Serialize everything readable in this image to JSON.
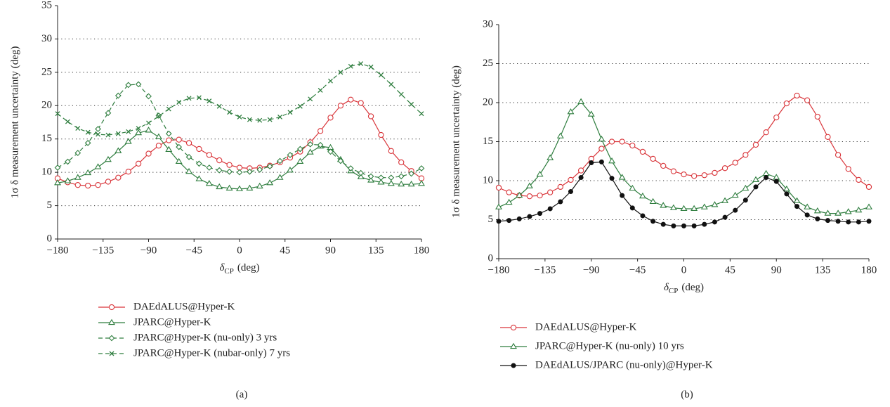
{
  "chart_data": [
    {
      "type": "line",
      "panel": "(a)",
      "ylabel": "1σ δ measurement uncertainty (deg)",
      "xlabel": {
        "symbol": "δ",
        "subscript": "CP",
        "unit": "(deg)"
      },
      "xlim": [
        -180,
        180
      ],
      "ylim": [
        0,
        35
      ],
      "xticks": [
        {
          "value": -180,
          "label": "−180"
        },
        {
          "value": -135,
          "label": "−135"
        },
        {
          "value": -90,
          "label": "−90"
        },
        {
          "value": -45,
          "label": "−45"
        },
        0,
        45,
        90,
        135,
        180
      ],
      "yticks": [
        0,
        5,
        10,
        15,
        20,
        25,
        30,
        35
      ],
      "grid": true,
      "x": [
        -180,
        -170,
        -160,
        -150,
        -140,
        -130,
        -120,
        -110,
        -100,
        -90,
        -80,
        -70,
        -60,
        -50,
        -40,
        -30,
        -20,
        -10,
        0,
        10,
        20,
        30,
        40,
        50,
        60,
        70,
        80,
        90,
        100,
        110,
        120,
        130,
        140,
        150,
        160,
        170,
        180
      ],
      "series": [
        {
          "name": "DAEdALUS@Hyper-K",
          "color": "#d9353a",
          "marker": "circle",
          "dashed": false,
          "values": [
            9.1,
            8.5,
            8.1,
            8.0,
            8.1,
            8.6,
            9.2,
            10.1,
            11.3,
            12.8,
            14.0,
            14.8,
            14.9,
            14.4,
            13.5,
            12.6,
            11.8,
            11.1,
            10.7,
            10.6,
            10.7,
            11.0,
            11.5,
            12.2,
            13.1,
            14.5,
            16.2,
            18.2,
            20.0,
            20.9,
            20.4,
            18.4,
            15.6,
            13.2,
            11.5,
            10.2,
            9.1
          ]
        },
        {
          "name": "JPARC@Hyper-K",
          "color": "#2e7d3e",
          "marker": "triangle",
          "dashed": false,
          "values": [
            8.4,
            8.7,
            9.2,
            9.9,
            10.8,
            11.9,
            13.2,
            14.6,
            15.9,
            16.3,
            15.3,
            13.4,
            11.6,
            10.1,
            9.0,
            8.3,
            7.8,
            7.6,
            7.5,
            7.6,
            7.9,
            8.4,
            9.2,
            10.3,
            11.6,
            13.0,
            13.9,
            13.7,
            11.9,
            10.2,
            9.3,
            8.8,
            8.5,
            8.3,
            8.2,
            8.2,
            8.3
          ]
        },
        {
          "name": "JPARC@Hyper-K (nu-only) 3 yrs",
          "color": "#2e7d3e",
          "marker": "diamond",
          "dashed": true,
          "values": [
            10.7,
            11.6,
            12.9,
            14.4,
            16.5,
            18.9,
            21.5,
            23.1,
            23.2,
            21.4,
            18.5,
            15.8,
            13.8,
            12.3,
            11.3,
            10.7,
            10.3,
            10.1,
            10.0,
            10.1,
            10.4,
            10.9,
            11.7,
            12.6,
            13.5,
            14.2,
            14.1,
            13.1,
            11.7,
            10.6,
            9.9,
            9.4,
            9.2,
            9.2,
            9.4,
            9.8,
            10.6
          ]
        },
        {
          "name": "JPARC@Hyper-K (nubar-only) 7 yrs",
          "color": "#2e7d3e",
          "marker": "cross",
          "dashed": true,
          "values": [
            18.8,
            17.6,
            16.6,
            16.0,
            15.7,
            15.6,
            15.8,
            16.1,
            16.6,
            17.4,
            18.4,
            19.5,
            20.5,
            21.1,
            21.2,
            20.7,
            19.9,
            19.0,
            18.3,
            17.9,
            17.8,
            17.9,
            18.3,
            19.0,
            19.9,
            21.0,
            22.3,
            23.7,
            25.0,
            25.9,
            26.3,
            25.8,
            24.6,
            23.2,
            21.7,
            20.2,
            18.8
          ]
        }
      ]
    },
    {
      "type": "line",
      "panel": "(b)",
      "ylabel": "1σ δ measurement uncertainty (deg)",
      "xlabel": {
        "symbol": "δ",
        "subscript": "CP",
        "unit": "(deg)"
      },
      "xlim": [
        -180,
        180
      ],
      "ylim": [
        0,
        30
      ],
      "xticks": [
        {
          "value": -180,
          "label": "−180"
        },
        {
          "value": -135,
          "label": "−135"
        },
        {
          "value": -90,
          "label": "−90"
        },
        {
          "value": -45,
          "label": "−45"
        },
        0,
        45,
        90,
        135,
        180
      ],
      "yticks": [
        0,
        5,
        10,
        15,
        20,
        25,
        30
      ],
      "grid": true,
      "x": [
        -180,
        -170,
        -160,
        -150,
        -140,
        -130,
        -120,
        -110,
        -100,
        -90,
        -80,
        -70,
        -60,
        -50,
        -40,
        -30,
        -20,
        -10,
        0,
        10,
        20,
        30,
        40,
        50,
        60,
        70,
        80,
        90,
        100,
        110,
        120,
        130,
        140,
        150,
        160,
        170,
        180
      ],
      "series": [
        {
          "name": "DAEdALUS@Hyper-K",
          "color": "#d9353a",
          "marker": "circle",
          "dashed": false,
          "values": [
            9.1,
            8.5,
            8.1,
            8.0,
            8.1,
            8.5,
            9.2,
            10.1,
            11.3,
            12.8,
            14.1,
            15.0,
            15.0,
            14.5,
            13.7,
            12.8,
            11.9,
            11.2,
            10.8,
            10.6,
            10.7,
            11.0,
            11.6,
            12.3,
            13.3,
            14.6,
            16.2,
            18.1,
            19.9,
            20.9,
            20.3,
            18.2,
            15.6,
            13.3,
            11.5,
            10.1,
            9.2
          ]
        },
        {
          "name": "JPARC@Hyper-K (nu-only) 10 yrs",
          "color": "#2e7d3e",
          "marker": "triangle",
          "dashed": false,
          "values": [
            6.6,
            7.2,
            8.1,
            9.3,
            10.8,
            12.9,
            15.7,
            18.8,
            20.1,
            18.5,
            15.3,
            12.5,
            10.4,
            9.0,
            8.0,
            7.3,
            6.8,
            6.5,
            6.4,
            6.4,
            6.6,
            6.9,
            7.4,
            8.1,
            9.0,
            10.1,
            10.9,
            10.4,
            8.9,
            7.4,
            6.6,
            6.1,
            5.8,
            5.8,
            6.0,
            6.2,
            6.6
          ]
        },
        {
          "name": "DAEdALUS/JPARC (nu-only)@Hyper-K",
          "color": "#111111",
          "marker": "dot",
          "dashed": false,
          "values": [
            4.8,
            4.9,
            5.1,
            5.4,
            5.8,
            6.4,
            7.3,
            8.6,
            10.4,
            12.3,
            12.4,
            10.3,
            8.1,
            6.5,
            5.5,
            4.8,
            4.4,
            4.2,
            4.2,
            4.2,
            4.4,
            4.7,
            5.3,
            6.2,
            7.5,
            9.2,
            10.4,
            9.9,
            8.3,
            6.7,
            5.6,
            5.1,
            4.9,
            4.8,
            4.7,
            4.7,
            4.8
          ]
        }
      ]
    }
  ]
}
